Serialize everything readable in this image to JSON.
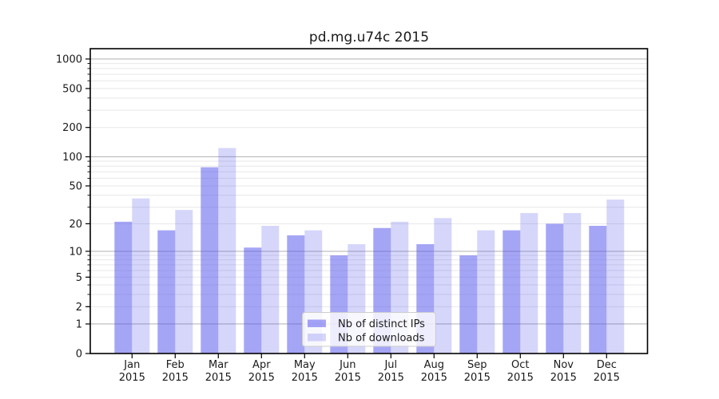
{
  "chart_data": {
    "type": "bar",
    "title": "pd.mg.u74c 2015",
    "categories": [
      "Jan\n2015",
      "Feb\n2015",
      "Mar\n2015",
      "Apr\n2015",
      "May\n2015",
      "Jun\n2015",
      "Jul\n2015",
      "Aug\n2015",
      "Sep\n2015",
      "Oct\n2015",
      "Nov\n2015",
      "Dec\n2015"
    ],
    "series": [
      {
        "name": "Nb of distinct IPs",
        "base_color": "#5555ee",
        "alpha": 0.53,
        "values": [
          21,
          17,
          78,
          11,
          15,
          9,
          18,
          12,
          9,
          17,
          20,
          19
        ]
      },
      {
        "name": "Nb of downloads",
        "base_color": "#5555ee",
        "alpha": 0.24,
        "values": [
          37,
          28,
          123,
          19,
          17,
          12,
          21,
          23,
          17,
          26,
          26,
          36
        ]
      }
    ],
    "xlabel": "",
    "ylabel": "",
    "yscale": "log1p",
    "yticks": [
      0,
      1,
      2,
      5,
      10,
      20,
      50,
      100,
      200,
      500,
      1000
    ],
    "ylim": [
      0,
      1276
    ],
    "grid": true,
    "legend_loc": "lower center",
    "colors": {
      "major_grid": "#b8b8b8",
      "minor_grid": "#e7e7e7",
      "axis": "#000000",
      "text": "#1a1a1a",
      "legend_border": "#cccccc",
      "legend_bg": "rgba(255,255,255,0.8)"
    }
  }
}
